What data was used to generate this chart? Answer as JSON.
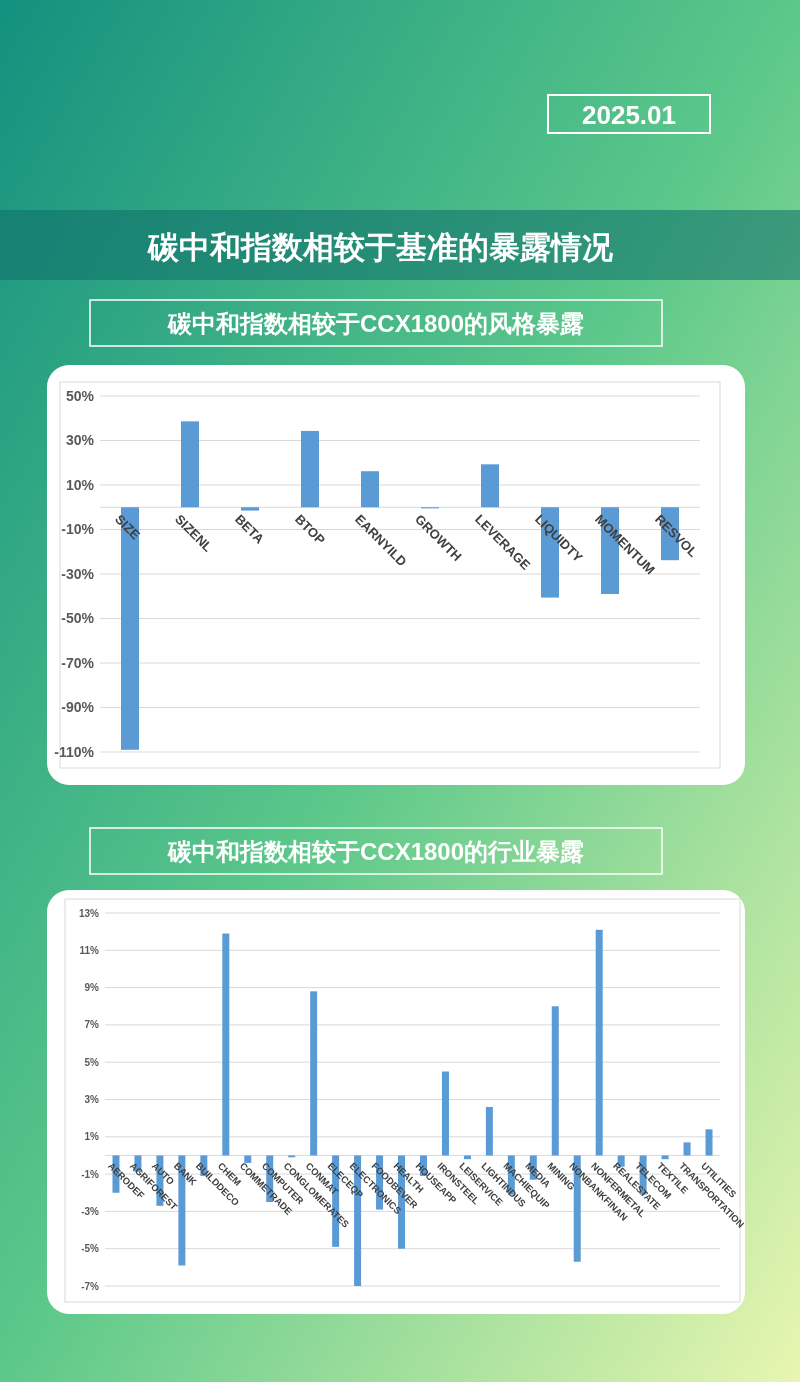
{
  "chart_data": [
    {
      "type": "bar",
      "title": "碳中和指数相较于基准的暴露情况",
      "subtitle": "碳中和指数相较于CCX1800的风格暴露",
      "annotations": [
        "2025.01"
      ],
      "categories": [
        "SIZE",
        "SIZENL",
        "BETA",
        "BTOP",
        "EARNYILD",
        "GROWTH",
        "LEVERAGE",
        "LIQUIDTY",
        "MOMENTUM",
        "RESVOL"
      ],
      "values": [
        -109,
        38.6,
        -1.5,
        34.3,
        16.2,
        -0.5,
        19.3,
        -40.6,
        -39.0,
        -23.8
      ],
      "color": "#5b9bd5",
      "ylim": [
        -110,
        50
      ],
      "yticks": [
        {
          "value": 50,
          "label": "50%"
        },
        {
          "value": 30,
          "label": "30%"
        },
        {
          "value": 10,
          "label": "10%"
        },
        {
          "value": -10,
          "label": "-10%"
        },
        {
          "value": -30,
          "label": "-30%"
        },
        {
          "value": -50,
          "label": "-50%"
        },
        {
          "value": -70,
          "label": "-70%"
        },
        {
          "value": -90,
          "label": "-90%"
        },
        {
          "value": -110,
          "label": "-110%"
        }
      ],
      "grid": "y"
    },
    {
      "type": "bar",
      "title": "碳中和指数相较于CCX1800的行业暴露",
      "categories": [
        "AERODEF",
        "AGRIFOREST",
        "AUTO",
        "BANK",
        "BUILDDECO",
        "CHEM",
        "COMMETRADE",
        "COMPUTER",
        "CONGLOMERATES",
        "CONMAT",
        "ELECEQP",
        "ELECTRONICS",
        "FOODBEVER",
        "HEALTH",
        "HOUSEAPP",
        "IRONSTEEL",
        "LEISERVICE",
        "LIGHTINDUS",
        "MACHIEQUIP",
        "MEDIA",
        "MINING",
        "NONBANKFINAN",
        "NONFERMETAL",
        "REALESTATE",
        "TELECOM",
        "TEXTILE",
        "TRANSPORTATION",
        "UTILITIES"
      ],
      "values": [
        -2.0,
        -0.88,
        -2.7,
        -5.9,
        -1.1,
        11.9,
        -0.4,
        -2.5,
        -0.1,
        8.8,
        -4.9,
        -7.0,
        -2.9,
        -5.0,
        -1.1,
        4.5,
        -0.2,
        2.6,
        -2.1,
        -1.3,
        8.0,
        -5.7,
        12.1,
        -0.6,
        -2.1,
        -0.2,
        0.7,
        1.4
      ],
      "color": "#5b9bd5",
      "ylim": [
        -7,
        13
      ],
      "yticks": [
        {
          "value": 13,
          "label": "13%"
        },
        {
          "value": 11,
          "label": "11%"
        },
        {
          "value": 9,
          "label": "9%"
        },
        {
          "value": 7,
          "label": "7%"
        },
        {
          "value": 5,
          "label": "5%"
        },
        {
          "value": 3,
          "label": "3%"
        },
        {
          "value": 1,
          "label": "1%"
        },
        {
          "value": -1,
          "label": "-1%"
        },
        {
          "value": -3,
          "label": "-3%"
        },
        {
          "value": -5,
          "label": "-5%"
        },
        {
          "value": -7,
          "label": "-7%"
        }
      ],
      "grid": "y"
    }
  ]
}
